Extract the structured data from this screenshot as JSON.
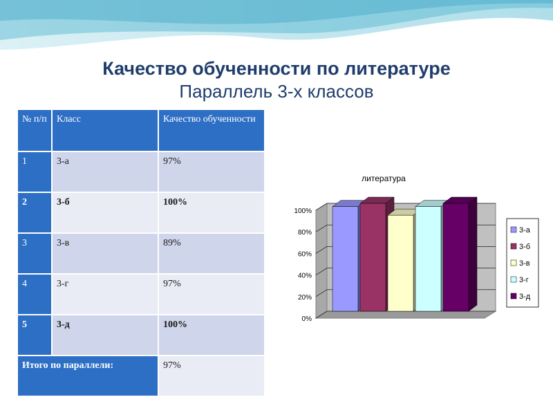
{
  "title": "Качество обученности по литературе",
  "subtitle": "Параллель 3-х классов",
  "table": {
    "headers": [
      "№ п/п",
      "Класс",
      "Качество обученности"
    ],
    "rows": [
      {
        "n": "1",
        "cls": "3-а",
        "val": "97%",
        "bold": false
      },
      {
        "n": "2",
        "cls": "3-б",
        "val": "100%",
        "bold": true
      },
      {
        "n": "3",
        "cls": "3-в",
        "val": "89%",
        "bold": false
      },
      {
        "n": "4",
        "cls": "3-г",
        "val": "97%",
        "bold": false
      },
      {
        "n": "5",
        "cls": "3-д",
        "val": "100%",
        "bold": true
      }
    ],
    "total_label": "Итого по параллели:",
    "total_value": "97%"
  },
  "chart_data": {
    "type": "bar",
    "title": "литература",
    "categories": [
      "3-а",
      "3-б",
      "3-в",
      "3-г",
      "3-д"
    ],
    "values": [
      97,
      100,
      89,
      97,
      100
    ],
    "colors": [
      "#9999ff",
      "#993366",
      "#ffffcc",
      "#ccffff",
      "#660066"
    ],
    "ylim": [
      0,
      100
    ],
    "yticks": [
      "0%",
      "20%",
      "40%",
      "60%",
      "80%",
      "100%"
    ],
    "grid": true,
    "legend": "right"
  }
}
